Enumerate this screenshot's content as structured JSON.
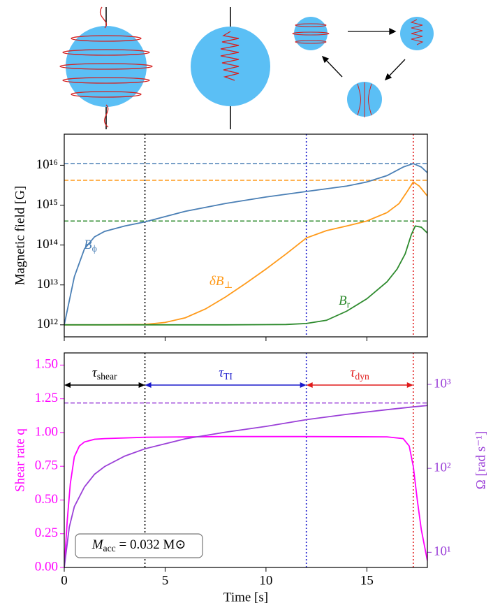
{
  "chart_data": [
    {
      "type": "line",
      "ylabel": "Magnetic field [G]",
      "ylog": true,
      "xlim": [
        0,
        18
      ],
      "xticks": [
        0,
        5,
        10,
        15
      ],
      "ylim": [
        500000000000.0,
        6e+16
      ],
      "yticks": [
        {
          "value": 1000000000000.0,
          "label": "10¹²"
        },
        {
          "value": 10000000000000.0,
          "label": "10¹³"
        },
        {
          "value": 100000000000000.0,
          "label": "10¹⁴"
        },
        {
          "value": 1000000000000000.0,
          "label": "10¹⁵"
        },
        {
          "value": 1e+16,
          "label": "10¹⁶"
        }
      ],
      "series": [
        {
          "name": "B",
          "name_sub": "ϕ",
          "color": "#4a7fb5",
          "x": [
            0,
            0.25,
            0.5,
            1,
            1.5,
            2,
            3,
            4,
            6,
            8,
            10,
            12,
            14,
            15,
            16,
            16.8,
            17.3,
            17.7,
            18
          ],
          "values": [
            1000000000000.0,
            4000000000000.0,
            16000000000000.0,
            80000000000000.0,
            160000000000000.0,
            220000000000000.0,
            300000000000000.0,
            380000000000000.0,
            700000000000000.0,
            1100000000000000.0,
            1600000000000000.0,
            2200000000000000.0,
            3000000000000000.0,
            3800000000000000.0,
            5500000000000000.0,
            9000000000000000.0,
            1.1e+16,
            9000000000000000.0,
            6500000000000000.0
          ]
        },
        {
          "name": "δB",
          "name_sub": "⊥",
          "color": "#ff9a1a",
          "x": [
            0,
            2,
            4,
            5,
            6,
            7,
            8,
            9,
            10,
            11,
            12,
            13,
            14,
            15,
            16,
            16.6,
            17,
            17.3,
            17.6,
            18
          ],
          "values": [
            1000000000000.0,
            1000000000000.0,
            1020000000000.0,
            1150000000000.0,
            1500000000000.0,
            2500000000000.0,
            5000000000000.0,
            11000000000000.0,
            25000000000000.0,
            60000000000000.0,
            150000000000000.0,
            230000000000000.0,
            300000000000000.0,
            400000000000000.0,
            650000000000000.0,
            1100000000000000.0,
            2200000000000000.0,
            3800000000000000.0,
            3000000000000000.0,
            1700000000000000.0
          ]
        },
        {
          "name": "B",
          "name_sub": "r",
          "color": "#2e8b2e",
          "x": [
            0,
            4,
            8,
            11,
            12,
            13,
            14,
            15,
            16,
            16.5,
            16.9,
            17.2,
            17.4,
            17.7,
            18
          ],
          "values": [
            1000000000000.0,
            1000000000000.0,
            1000000000000.0,
            1020000000000.0,
            1080000000000.0,
            1300000000000.0,
            2200000000000.0,
            4500000000000.0,
            12000000000000.0,
            25000000000000.0,
            60000000000000.0,
            180000000000000.0,
            300000000000000.0,
            280000000000000.0,
            200000000000000.0
          ]
        }
      ],
      "hlines": [
        {
          "value": 1.1e+16,
          "color": "#4a7fb5"
        },
        {
          "value": 4200000000000000.0,
          "color": "#ff9a1a"
        },
        {
          "value": 400000000000000.0,
          "color": "#2e8b2e"
        }
      ],
      "vlines": [
        {
          "value": 4,
          "color": "#000000"
        },
        {
          "value": 12,
          "color": "#1a1acc"
        },
        {
          "value": 17.3,
          "color": "#e01a1a"
        }
      ]
    },
    {
      "type": "line",
      "xlabel": "Time [s]",
      "ylabel": "Shear rate q",
      "ylabel_color": "#ff00ff",
      "y2label": "Ω [rad s⁻¹]",
      "y2label_color": "#9b40d8",
      "y2log": true,
      "xlim": [
        0,
        18
      ],
      "xticks": [
        0,
        5,
        10,
        15
      ],
      "ylim": [
        0,
        1.59
      ],
      "yticks": [
        {
          "value": 0,
          "label": "0.00"
        },
        {
          "value": 0.25,
          "label": "0.25"
        },
        {
          "value": 0.5,
          "label": "0.50"
        },
        {
          "value": 0.75,
          "label": "0.75"
        },
        {
          "value": 1,
          "label": "1.00"
        },
        {
          "value": 1.25,
          "label": "1.25"
        },
        {
          "value": 1.5,
          "label": "1.50"
        }
      ],
      "y2lim": [
        6.6,
        2370
      ],
      "y2ticks": [
        {
          "value": 10,
          "label": "10¹"
        },
        {
          "value": 100,
          "label": "10²"
        },
        {
          "value": 1000,
          "label": "10³"
        }
      ],
      "series": [
        {
          "name": "q",
          "color": "#ff00ff",
          "x": [
            0,
            0.15,
            0.3,
            0.5,
            0.75,
            1,
            1.5,
            2,
            4,
            8,
            12,
            16,
            16.8,
            17.1,
            17.3,
            17.5,
            17.7,
            18
          ],
          "values": [
            0,
            0.35,
            0.62,
            0.82,
            0.9,
            0.93,
            0.95,
            0.955,
            0.965,
            0.97,
            0.97,
            0.968,
            0.955,
            0.9,
            0.75,
            0.5,
            0.28,
            0.05
          ]
        },
        {
          "name": "Ω",
          "color": "#9b40d8",
          "axis": "y2",
          "x": [
            0,
            0.25,
            0.5,
            1,
            1.5,
            2,
            3,
            4,
            6,
            8,
            10,
            12,
            14,
            16,
            17.3,
            18
          ],
          "values": [
            6.6,
            20,
            35,
            60,
            85,
            105,
            140,
            171,
            225,
            270,
            316,
            380,
            440,
            500,
            540,
            560
          ]
        }
      ],
      "hlines": [
        {
          "value": 600,
          "color": "#9b40d8",
          "axis": "y2"
        }
      ],
      "vlines": [
        {
          "value": 4,
          "color": "#000000"
        },
        {
          "value": 12,
          "color": "#1a1acc"
        },
        {
          "value": 17.3,
          "color": "#e01a1a"
        }
      ],
      "spans": [
        {
          "from": 0,
          "to": 4,
          "color": "#000000",
          "label": "τ",
          "label_sub": "shear"
        },
        {
          "from": 4,
          "to": 12,
          "color": "#1a1acc",
          "label": "τ",
          "label_sub": "TI"
        },
        {
          "from": 12,
          "to": 17.3,
          "color": "#e01a1a",
          "label": "τ",
          "label_sub": "dyn"
        }
      ],
      "note": {
        "main": "M",
        "sub": "acc",
        "rest": " = 0.032 M⊙"
      }
    }
  ]
}
